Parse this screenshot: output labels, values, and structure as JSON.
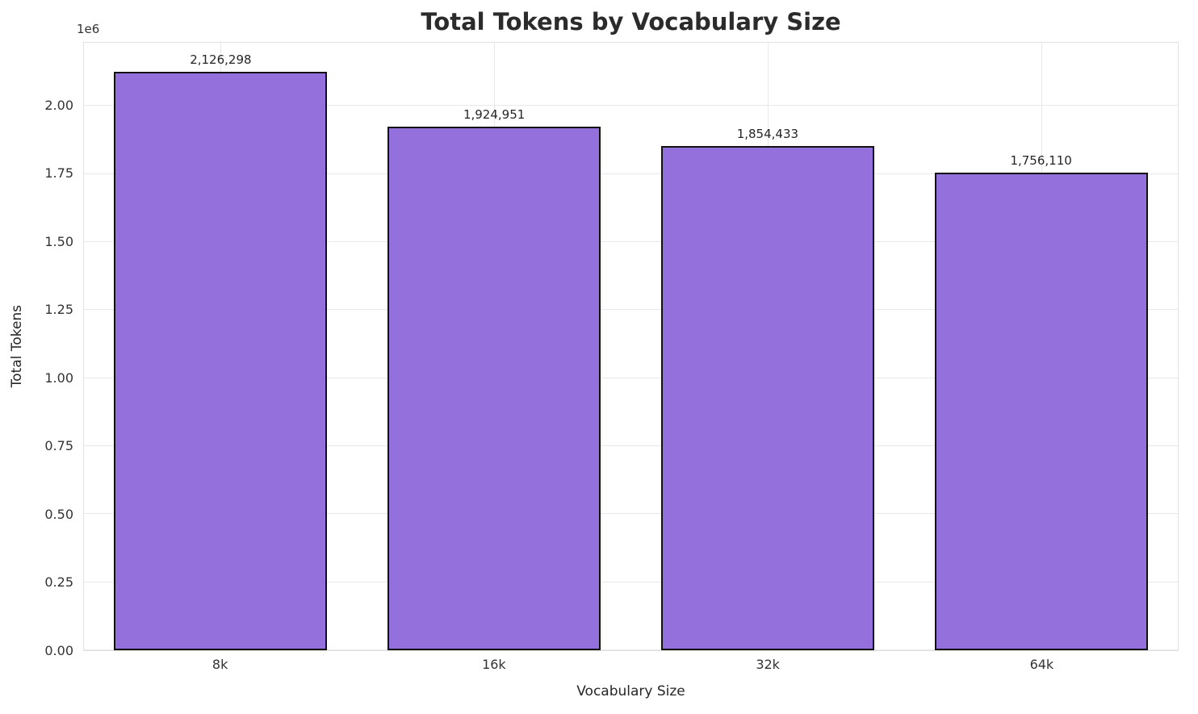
{
  "chart_data": {
    "type": "bar",
    "title": "Total Tokens by Vocabulary Size",
    "xlabel": "Vocabulary Size",
    "ylabel": "Total Tokens",
    "offset_text": "1e6",
    "categories": [
      "8k",
      "16k",
      "32k",
      "64k"
    ],
    "values": [
      2126298,
      1924951,
      1854433,
      1756110
    ],
    "value_labels": [
      "2,126,298",
      "1,924,951",
      "1,854,433",
      "1,756,110"
    ],
    "ylim": [
      0,
      2232613
    ],
    "yticks": [
      0,
      250000,
      500000,
      750000,
      1000000,
      1250000,
      1500000,
      1750000,
      2000000
    ],
    "ytick_labels": [
      "0.00",
      "0.25",
      "0.50",
      "0.75",
      "1.00",
      "1.25",
      "1.50",
      "1.75",
      "2.00"
    ],
    "grid": true,
    "legend": "none",
    "bar_color": "#9370DB",
    "bar_edge_color": "#111111",
    "bar_width_fraction": 0.78
  }
}
